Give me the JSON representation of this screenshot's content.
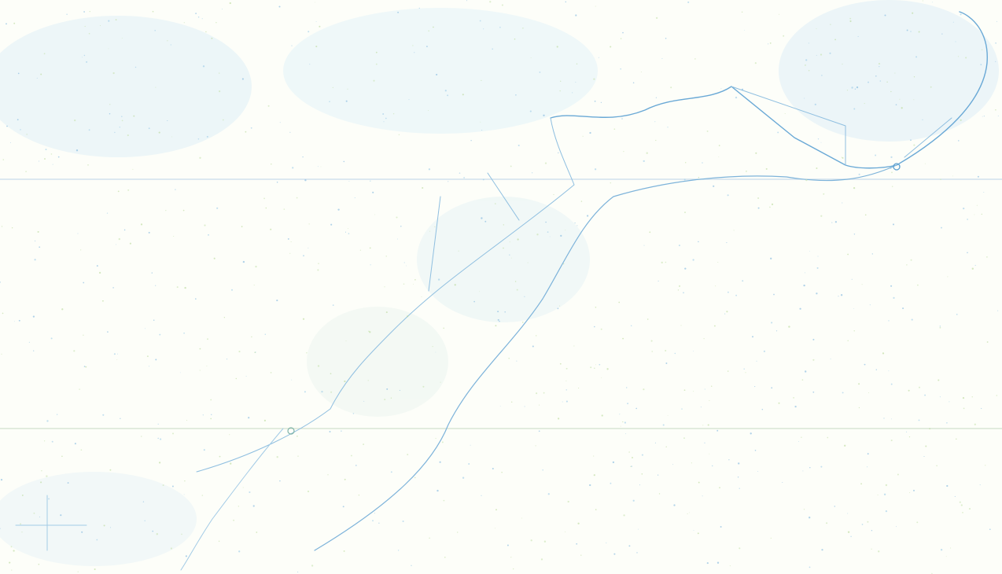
{
  "map": {
    "labels": []
  }
}
